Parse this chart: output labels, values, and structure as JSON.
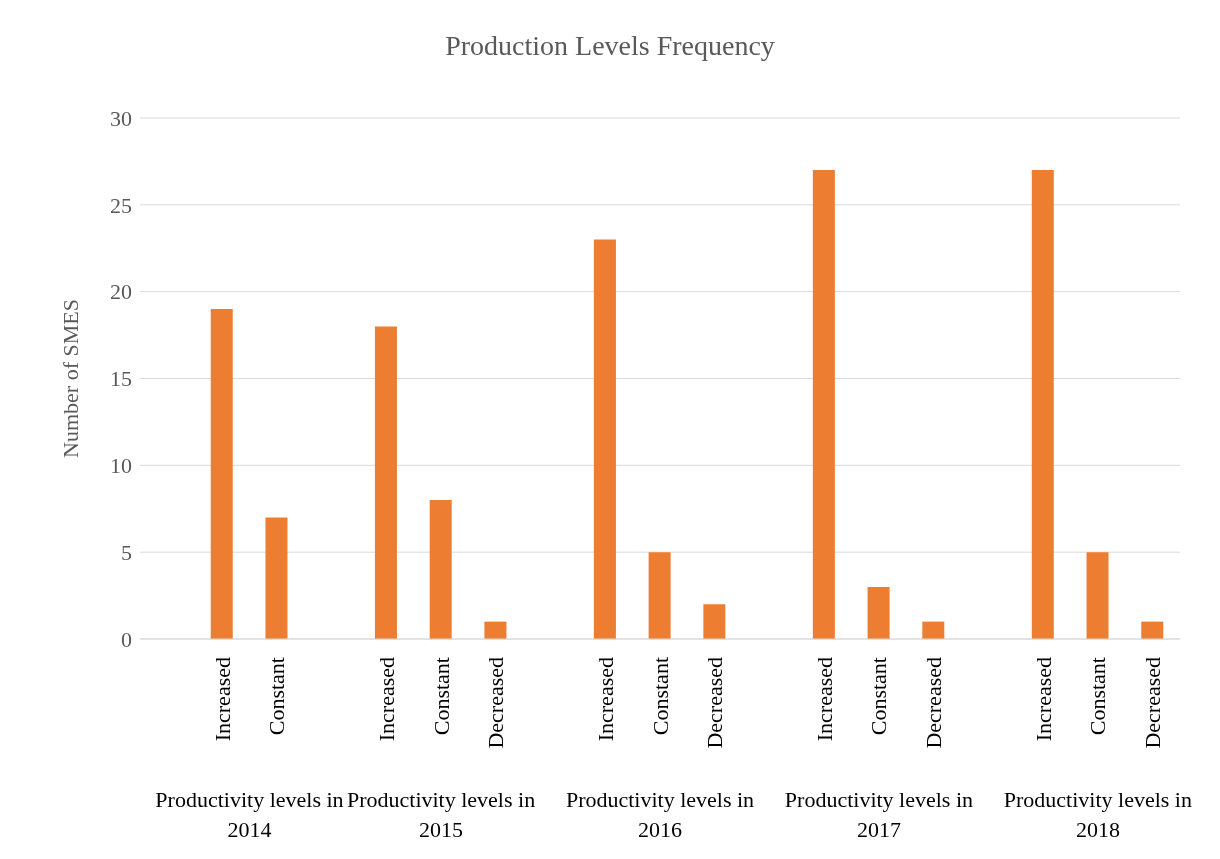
{
  "chart_data": {
    "type": "bar",
    "title": "Production Levels Frequency",
    "ylabel": "Number of SMES",
    "categories": [
      null,
      "Increased",
      "Constant",
      null,
      "Increased",
      "Constant",
      "Decreased",
      null,
      "Increased",
      "Constant",
      "Decreased",
      null,
      "Increased",
      "Constant",
      "Decreased",
      null,
      "Increased",
      "Constant",
      "Decreased"
    ],
    "values": [
      null,
      19,
      7,
      null,
      18,
      8,
      1,
      null,
      23,
      5,
      2,
      null,
      27,
      3,
      1,
      null,
      27,
      5,
      1
    ],
    "color": "#ed7d31",
    "annotations": [
      "Productivity levels in 2014",
      "Productivity levels in 2015",
      "Productivity levels in 2016",
      "Productivity levels in 2017",
      "Productivity levels in 2018"
    ],
    "ylim": [
      0,
      30
    ],
    "yticks": [
      0,
      5,
      10,
      15,
      20,
      25,
      30
    ],
    "grid": "y"
  }
}
